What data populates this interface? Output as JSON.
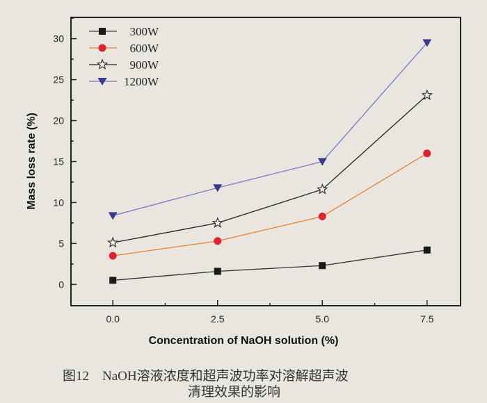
{
  "chart_data": {
    "type": "line",
    "xlabel": "Concentration of NaOH solution (%)",
    "ylabel": "Mass loss rate (%)",
    "x": [
      0.0,
      2.5,
      5.0,
      7.5
    ],
    "xticks": [
      "0.0",
      "2.5",
      "5.0",
      "7.5"
    ],
    "yticks": [
      "0",
      "5",
      "10",
      "15",
      "20",
      "25",
      "30"
    ],
    "xlim": [
      -1,
      8.3
    ],
    "ylim": [
      -2.6,
      32.6
    ],
    "grid": false,
    "legend_position": "top-left",
    "series": [
      {
        "name": "300W",
        "values": [
          0.5,
          1.6,
          2.3,
          4.2
        ],
        "color": "#1a1a1a",
        "line_color": "#333333",
        "marker": "square"
      },
      {
        "name": "600W",
        "values": [
          3.5,
          5.3,
          8.3,
          16.0
        ],
        "color": "#e0222e",
        "line_color": "#e8822a",
        "marker": "circle"
      },
      {
        "name": "900W",
        "values": [
          5.1,
          7.5,
          11.6,
          23.1
        ],
        "color": "#333333",
        "line_color": "#222222",
        "marker": "star-open"
      },
      {
        "name": "1200W",
        "values": [
          8.4,
          11.8,
          15.0,
          29.5
        ],
        "color": "#3a3a8c",
        "line_color": "#7a78c8",
        "marker": "triangle-down"
      }
    ]
  },
  "caption": {
    "line1": "图12　NaOH溶液浓度和超声波功率对溶解超声波",
    "line2": "清理效果的影响"
  }
}
